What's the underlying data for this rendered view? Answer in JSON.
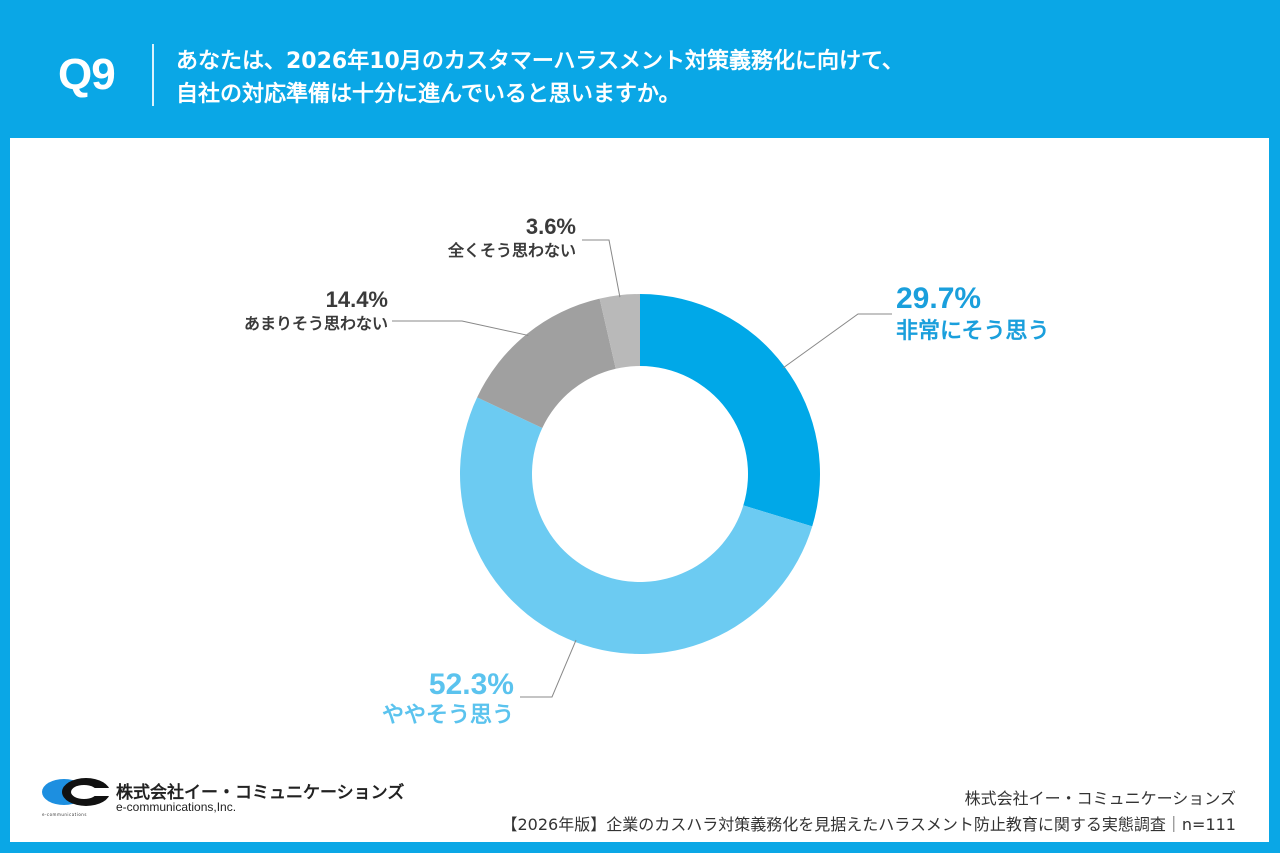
{
  "header": {
    "question_number": "Q9",
    "question_line1": "あなたは、2026年10月のカスタマーハラスメント対策義務化に向けて、",
    "question_line2": "自社の対応準備は十分に進んでいると思いますか。"
  },
  "colors": {
    "brand": "#0aa7e6",
    "very_much": "#00a8e8",
    "somewhat": "#6ccbf2",
    "not_much": "#a0a0a0",
    "not_at_all": "#b9b9b9",
    "label_dark": "#333333",
    "leader_line": "#888888"
  },
  "chart_data": {
    "type": "pie",
    "variant": "donut",
    "title": "あなたは、2026年10月のカスタマーハラスメント対策義務化に向けて、自社の対応準備は十分に進んでいると思いますか。",
    "start": "12 o'clock, clockwise",
    "slices": [
      {
        "label": "非常にそう思う",
        "value": 29.7,
        "display": "29.7%",
        "color": "#00a8e8",
        "label_color": "#1a9fdc",
        "label_position": "right"
      },
      {
        "label": "ややそう思う",
        "value": 52.3,
        "display": "52.3%",
        "color": "#6ccbf2",
        "label_color": "#5bc3ee",
        "label_position": "bottom-left"
      },
      {
        "label": "あまりそう思わない",
        "value": 14.4,
        "display": "14.4%",
        "color": "#a0a0a0",
        "label_color": "#3a3a3a",
        "label_position": "top-left"
      },
      {
        "label": "全くそう思わない",
        "value": 3.6,
        "display": "3.6%",
        "color": "#b9b9b9",
        "label_color": "#3a3a3a",
        "label_position": "top"
      }
    ],
    "n": 111
  },
  "footer": {
    "logo_jp": "株式会社イー・コミュニケーションズ",
    "logo_en": "e-communications,Inc.",
    "logo_mark_text": "e-communications",
    "credit_company": "株式会社イー・コミュニケーションズ",
    "credit_survey": "【2026年版】企業のカスハラ対策義務化を見据えたハラスメント防止教育に関する実態調査｜n=111"
  }
}
